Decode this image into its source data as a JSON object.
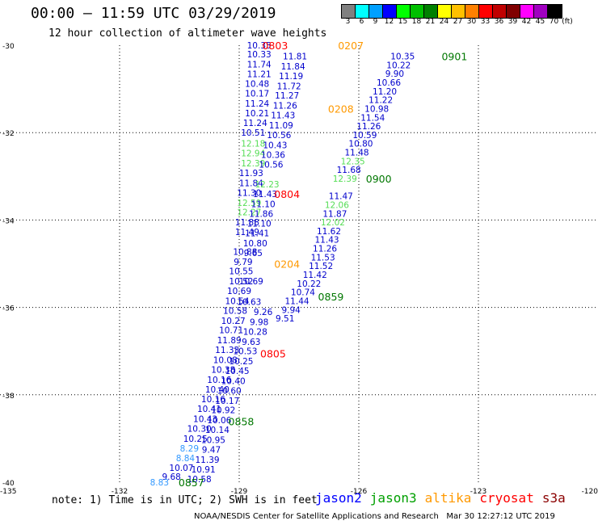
{
  "header": {
    "title": "00:00 – 11:59 UTC 03/29/2019",
    "subtitle": "12 hour collection of altimeter wave heights"
  },
  "legend": {
    "unit_label": "(ft)",
    "swatches": [
      {
        "label": "3",
        "color": "#808080"
      },
      {
        "label": "6",
        "color": "#00ffff"
      },
      {
        "label": "9",
        "color": "#00a0ff"
      },
      {
        "label": "12",
        "color": "#0000ff"
      },
      {
        "label": "15",
        "color": "#00ff00"
      },
      {
        "label": "18",
        "color": "#00c000"
      },
      {
        "label": "21",
        "color": "#008000"
      },
      {
        "label": "24",
        "color": "#ffff00"
      },
      {
        "label": "27",
        "color": "#ffc000"
      },
      {
        "label": "30",
        "color": "#ff8000"
      },
      {
        "label": "33",
        "color": "#ff0000"
      },
      {
        "label": "36",
        "color": "#c00000"
      },
      {
        "label": "39",
        "color": "#800000"
      },
      {
        "label": "42",
        "color": "#ff00ff"
      },
      {
        "label": "45",
        "color": "#a000c0"
      },
      {
        "label": "70",
        "color": "#000000"
      }
    ]
  },
  "note": "note: 1) Time is in UTC; 2) SWH is in feet",
  "satellites": [
    {
      "name": "jason2",
      "color": "#0000ff"
    },
    {
      "name": "jason3",
      "color": "#00a000"
    },
    {
      "name": "altika",
      "color": "#ff9900"
    },
    {
      "name": "cryosat",
      "color": "#ff0000"
    },
    {
      "name": "s3a",
      "color": "#8b0000"
    }
  ],
  "footer": "NOAA/NESDIS Center for Satellite Applications and Research   Mar 30 12:27:12 UTC 2019",
  "chart_data": {
    "type": "scatter",
    "xlim": [
      -135,
      -120
    ],
    "ylim": [
      -40,
      -30
    ],
    "x_ticks": [
      "-135",
      "-132",
      "-129",
      "-126",
      "-123",
      "-120"
    ],
    "y_ticks": [
      "-30",
      "-32",
      "-34",
      "-36",
      "-38",
      "-40"
    ],
    "grid": true,
    "colors": {
      "blue": "#0000cc",
      "green": "#55dd55",
      "lightblue": "#3399ff",
      "orange": "#ff9900",
      "red": "#ff0000",
      "darkgreen": "#007700"
    },
    "track_a": [
      {
        "label": "10.35",
        "c": "blue",
        "lon": -128.5,
        "lat": -30.0
      },
      {
        "label": "10.33",
        "c": "blue",
        "lon": -128.5,
        "lat": -30.2
      },
      {
        "label": "11.74",
        "c": "blue",
        "lon": -128.5,
        "lat": -30.43
      },
      {
        "label": "11.21",
        "c": "blue",
        "lon": -128.5,
        "lat": -30.66
      },
      {
        "label": "10.48",
        "c": "blue",
        "lon": -128.55,
        "lat": -30.88
      },
      {
        "label": "10.17",
        "c": "blue",
        "lon": -128.55,
        "lat": -31.1
      },
      {
        "label": "11.24",
        "c": "blue",
        "lon": -128.55,
        "lat": -31.33
      },
      {
        "label": "10.21",
        "c": "blue",
        "lon": -128.55,
        "lat": -31.55
      },
      {
        "label": "11.24",
        "c": "blue",
        "lon": -128.6,
        "lat": -31.77
      },
      {
        "label": "10.51",
        "c": "blue",
        "lon": -128.65,
        "lat": -32.0
      },
      {
        "label": "12.18",
        "c": "green",
        "lon": -128.65,
        "lat": -32.25
      },
      {
        "label": "12.94",
        "c": "green",
        "lon": -128.65,
        "lat": -32.47
      },
      {
        "label": "12.39",
        "c": "green",
        "lon": -128.65,
        "lat": -32.7
      },
      {
        "label": "11.93",
        "c": "blue",
        "lon": -128.7,
        "lat": -32.92
      },
      {
        "label": "11.84",
        "c": "blue",
        "lon": -128.7,
        "lat": -33.15
      },
      {
        "label": "11.30",
        "c": "blue",
        "lon": -128.75,
        "lat": -33.37
      },
      {
        "label": "12.59",
        "c": "green",
        "lon": -128.75,
        "lat": -33.6
      },
      {
        "label": "12.27",
        "c": "green",
        "lon": -128.75,
        "lat": -33.82
      },
      {
        "label": "11.88",
        "c": "blue",
        "lon": -128.8,
        "lat": -34.05
      },
      {
        "label": "11.49",
        "c": "blue",
        "lon": -128.8,
        "lat": -34.27
      },
      {
        "label": "10.88",
        "c": "blue",
        "lon": -128.85,
        "lat": -34.72
      },
      {
        "label": "9.79",
        "c": "blue",
        "lon": -128.9,
        "lat": -34.95
      },
      {
        "label": "10.55",
        "c": "blue",
        "lon": -128.95,
        "lat": -35.17
      },
      {
        "label": "10.52",
        "c": "blue",
        "lon": -128.95,
        "lat": -35.4
      },
      {
        "label": "10.69",
        "c": "blue",
        "lon": -129.0,
        "lat": -35.62
      },
      {
        "label": "10.54",
        "c": "blue",
        "lon": -129.05,
        "lat": -35.85
      },
      {
        "label": "10.58",
        "c": "blue",
        "lon": -129.1,
        "lat": -36.07
      },
      {
        "label": "10.27",
        "c": "blue",
        "lon": -129.15,
        "lat": -36.3
      },
      {
        "label": "10.71",
        "c": "blue",
        "lon": -129.2,
        "lat": -36.52
      },
      {
        "label": "11.89",
        "c": "blue",
        "lon": -129.25,
        "lat": -36.75
      },
      {
        "label": "11.33",
        "c": "blue",
        "lon": -129.3,
        "lat": -36.97
      },
      {
        "label": "10.08",
        "c": "blue",
        "lon": -129.35,
        "lat": -37.2
      },
      {
        "label": "10.38",
        "c": "blue",
        "lon": -129.4,
        "lat": -37.42
      },
      {
        "label": "10.16",
        "c": "blue",
        "lon": -129.5,
        "lat": -37.65
      },
      {
        "label": "10.40",
        "c": "blue",
        "lon": -129.55,
        "lat": -37.87
      },
      {
        "label": "10.16",
        "c": "blue",
        "lon": -129.65,
        "lat": -38.1
      },
      {
        "label": "10.41",
        "c": "blue",
        "lon": -129.75,
        "lat": -38.32
      },
      {
        "label": "10.43",
        "c": "blue",
        "lon": -129.85,
        "lat": -38.55
      },
      {
        "label": "10.30",
        "c": "blue",
        "lon": -130.0,
        "lat": -38.77
      },
      {
        "label": "10.25",
        "c": "blue",
        "lon": -130.1,
        "lat": -39.0
      },
      {
        "label": "8.29",
        "c": "lightblue",
        "lon": -130.25,
        "lat": -39.22
      },
      {
        "label": "8.84",
        "c": "lightblue",
        "lon": -130.35,
        "lat": -39.45
      },
      {
        "label": "10.07",
        "c": "blue",
        "lon": -130.45,
        "lat": -39.67
      },
      {
        "label": "9.68",
        "c": "blue",
        "lon": -130.7,
        "lat": -39.87
      },
      {
        "label": "8.83",
        "c": "lightblue",
        "lon": -131.0,
        "lat": -40.0
      }
    ],
    "track_b": [
      {
        "label": "11.81",
        "c": "blue",
        "lon": -127.6,
        "lat": -30.25
      },
      {
        "label": "11.84",
        "c": "blue",
        "lon": -127.65,
        "lat": -30.48
      },
      {
        "label": "11.19",
        "c": "blue",
        "lon": -127.7,
        "lat": -30.7
      },
      {
        "label": "11.72",
        "c": "blue",
        "lon": -127.75,
        "lat": -30.93
      },
      {
        "label": "11.27",
        "c": "blue",
        "lon": -127.8,
        "lat": -31.15
      },
      {
        "label": "11.26",
        "c": "blue",
        "lon": -127.85,
        "lat": -31.38
      },
      {
        "label": "11.43",
        "c": "blue",
        "lon": -127.9,
        "lat": -31.6
      },
      {
        "label": "11.09",
        "c": "blue",
        "lon": -127.95,
        "lat": -31.83
      },
      {
        "label": "10.56",
        "c": "blue",
        "lon": -128.0,
        "lat": -32.05
      },
      {
        "label": "10.43",
        "c": "blue",
        "lon": -128.1,
        "lat": -32.28
      },
      {
        "label": "10.36",
        "c": "blue",
        "lon": -128.15,
        "lat": -32.5
      },
      {
        "label": "10.56",
        "c": "blue",
        "lon": -128.2,
        "lat": -32.73
      },
      {
        "label": "12.23",
        "c": "green",
        "lon": -128.3,
        "lat": -33.18
      },
      {
        "label": "11.43",
        "c": "blue",
        "lon": -128.35,
        "lat": -33.4
      },
      {
        "label": "11.10",
        "c": "blue",
        "lon": -128.4,
        "lat": -33.63
      },
      {
        "label": "11.86",
        "c": "blue",
        "lon": -128.45,
        "lat": -33.85
      },
      {
        "label": "11.10",
        "c": "blue",
        "lon": -128.5,
        "lat": -34.08
      },
      {
        "label": "11.41",
        "c": "blue",
        "lon": -128.55,
        "lat": -34.3
      },
      {
        "label": "10.80",
        "c": "blue",
        "lon": -128.6,
        "lat": -34.53
      },
      {
        "label": "9.65",
        "c": "blue",
        "lon": -128.65,
        "lat": -34.75
      },
      {
        "label": "10.69",
        "c": "blue",
        "lon": -128.7,
        "lat": -35.4
      },
      {
        "label": "10.63",
        "c": "blue",
        "lon": -128.75,
        "lat": -35.87
      },
      {
        "label": "9.26",
        "c": "blue",
        "lon": -128.4,
        "lat": -36.1
      },
      {
        "label": "9.98",
        "c": "blue",
        "lon": -128.5,
        "lat": -36.33
      },
      {
        "label": "10.28",
        "c": "blue",
        "lon": -128.6,
        "lat": -36.55
      },
      {
        "label": "9.63",
        "c": "blue",
        "lon": -128.7,
        "lat": -36.78
      },
      {
        "label": "10.53",
        "c": "blue",
        "lon": -128.85,
        "lat": -37.0
      },
      {
        "label": "10.25",
        "c": "blue",
        "lon": -128.95,
        "lat": -37.23
      },
      {
        "label": "10.45",
        "c": "blue",
        "lon": -129.05,
        "lat": -37.45
      },
      {
        "label": "10.40",
        "c": "blue",
        "lon": -129.15,
        "lat": -37.68
      },
      {
        "label": "10.60",
        "c": "blue",
        "lon": -129.25,
        "lat": -37.9
      },
      {
        "label": "10.17",
        "c": "blue",
        "lon": -129.3,
        "lat": -38.13
      },
      {
        "label": "10.92",
        "c": "blue",
        "lon": -129.4,
        "lat": -38.35
      },
      {
        "label": "10.06",
        "c": "blue",
        "lon": -129.5,
        "lat": -38.58
      },
      {
        "label": "10.14",
        "c": "blue",
        "lon": -129.55,
        "lat": -38.8
      },
      {
        "label": "10.95",
        "c": "blue",
        "lon": -129.65,
        "lat": -39.03
      },
      {
        "label": "9.47",
        "c": "blue",
        "lon": -129.7,
        "lat": -39.25
      },
      {
        "label": "11.39",
        "c": "blue",
        "lon": -129.8,
        "lat": -39.48
      },
      {
        "label": "10.91",
        "c": "blue",
        "lon": -129.9,
        "lat": -39.7
      },
      {
        "label": "10.58",
        "c": "blue",
        "lon": -130.0,
        "lat": -39.93
      }
    ],
    "track_c": [
      {
        "label": "10.35",
        "c": "blue",
        "lon": -124.9,
        "lat": -30.25
      },
      {
        "label": "10.22",
        "c": "blue",
        "lon": -125.0,
        "lat": -30.45
      },
      {
        "label": "9.90",
        "c": "blue",
        "lon": -125.1,
        "lat": -30.65
      },
      {
        "label": "10.66",
        "c": "blue",
        "lon": -125.25,
        "lat": -30.85
      },
      {
        "label": "11.20",
        "c": "blue",
        "lon": -125.35,
        "lat": -31.05
      },
      {
        "label": "11.22",
        "c": "blue",
        "lon": -125.45,
        "lat": -31.25
      },
      {
        "label": "10.98",
        "c": "blue",
        "lon": -125.55,
        "lat": -31.45
      },
      {
        "label": "11.54",
        "c": "blue",
        "lon": -125.65,
        "lat": -31.65
      },
      {
        "label": "11.26",
        "c": "blue",
        "lon": -125.75,
        "lat": -31.85
      },
      {
        "label": "10.59",
        "c": "blue",
        "lon": -125.85,
        "lat": -32.05
      },
      {
        "label": "10.80",
        "c": "blue",
        "lon": -125.95,
        "lat": -32.25
      },
      {
        "label": "11.48",
        "c": "blue",
        "lon": -126.05,
        "lat": -32.45
      },
      {
        "label": "12.35",
        "c": "green",
        "lon": -126.15,
        "lat": -32.65
      },
      {
        "label": "11.68",
        "c": "blue",
        "lon": -126.25,
        "lat": -32.85
      },
      {
        "label": "12.39",
        "c": "green",
        "lon": -126.35,
        "lat": -33.05
      },
      {
        "label": "11.47",
        "c": "blue",
        "lon": -126.45,
        "lat": -33.45
      },
      {
        "label": "12.06",
        "c": "green",
        "lon": -126.55,
        "lat": -33.65
      },
      {
        "label": "11.87",
        "c": "blue",
        "lon": -126.6,
        "lat": -33.85
      },
      {
        "label": "12.02",
        "c": "green",
        "lon": -126.65,
        "lat": -34.05
      },
      {
        "label": "11.62",
        "c": "blue",
        "lon": -126.75,
        "lat": -34.25
      },
      {
        "label": "11.43",
        "c": "blue",
        "lon": -126.8,
        "lat": -34.45
      },
      {
        "label": "11.26",
        "c": "blue",
        "lon": -126.85,
        "lat": -34.65
      },
      {
        "label": "11.53",
        "c": "blue",
        "lon": -126.9,
        "lat": -34.85
      },
      {
        "label": "11.52",
        "c": "blue",
        "lon": -126.95,
        "lat": -35.05
      },
      {
        "label": "11.42",
        "c": "blue",
        "lon": -127.1,
        "lat": -35.25
      },
      {
        "label": "10.22",
        "c": "blue",
        "lon": -127.25,
        "lat": -35.45
      },
      {
        "label": "10.74",
        "c": "blue",
        "lon": -127.4,
        "lat": -35.65
      },
      {
        "label": "11.44",
        "c": "blue",
        "lon": -127.55,
        "lat": -35.85
      },
      {
        "label": "9.94",
        "c": "blue",
        "lon": -127.7,
        "lat": -36.05
      },
      {
        "label": "9.51",
        "c": "blue",
        "lon": -127.85,
        "lat": -36.25
      }
    ],
    "time_labels": [
      {
        "label": "0803",
        "c": "red",
        "lon": -128.1,
        "lat": -30.0
      },
      {
        "label": "0207",
        "c": "orange",
        "lon": -126.2,
        "lat": -30.0
      },
      {
        "label": "0901",
        "c": "darkgreen",
        "lon": -123.6,
        "lat": -30.25
      },
      {
        "label": "0208",
        "c": "orange",
        "lon": -126.45,
        "lat": -31.45
      },
      {
        "label": "0900",
        "c": "darkgreen",
        "lon": -125.5,
        "lat": -33.05
      },
      {
        "label": "0804",
        "c": "red",
        "lon": -127.8,
        "lat": -33.4
      },
      {
        "label": "0204",
        "c": "orange",
        "lon": -127.8,
        "lat": -35.0
      },
      {
        "label": "0859",
        "c": "darkgreen",
        "lon": -126.7,
        "lat": -35.75
      },
      {
        "label": "0805",
        "c": "red",
        "lon": -128.15,
        "lat": -37.05
      },
      {
        "label": "0858",
        "c": "darkgreen",
        "lon": -128.95,
        "lat": -38.6
      },
      {
        "label": "0857",
        "c": "darkgreen",
        "lon": -130.2,
        "lat": -40.0
      }
    ]
  }
}
